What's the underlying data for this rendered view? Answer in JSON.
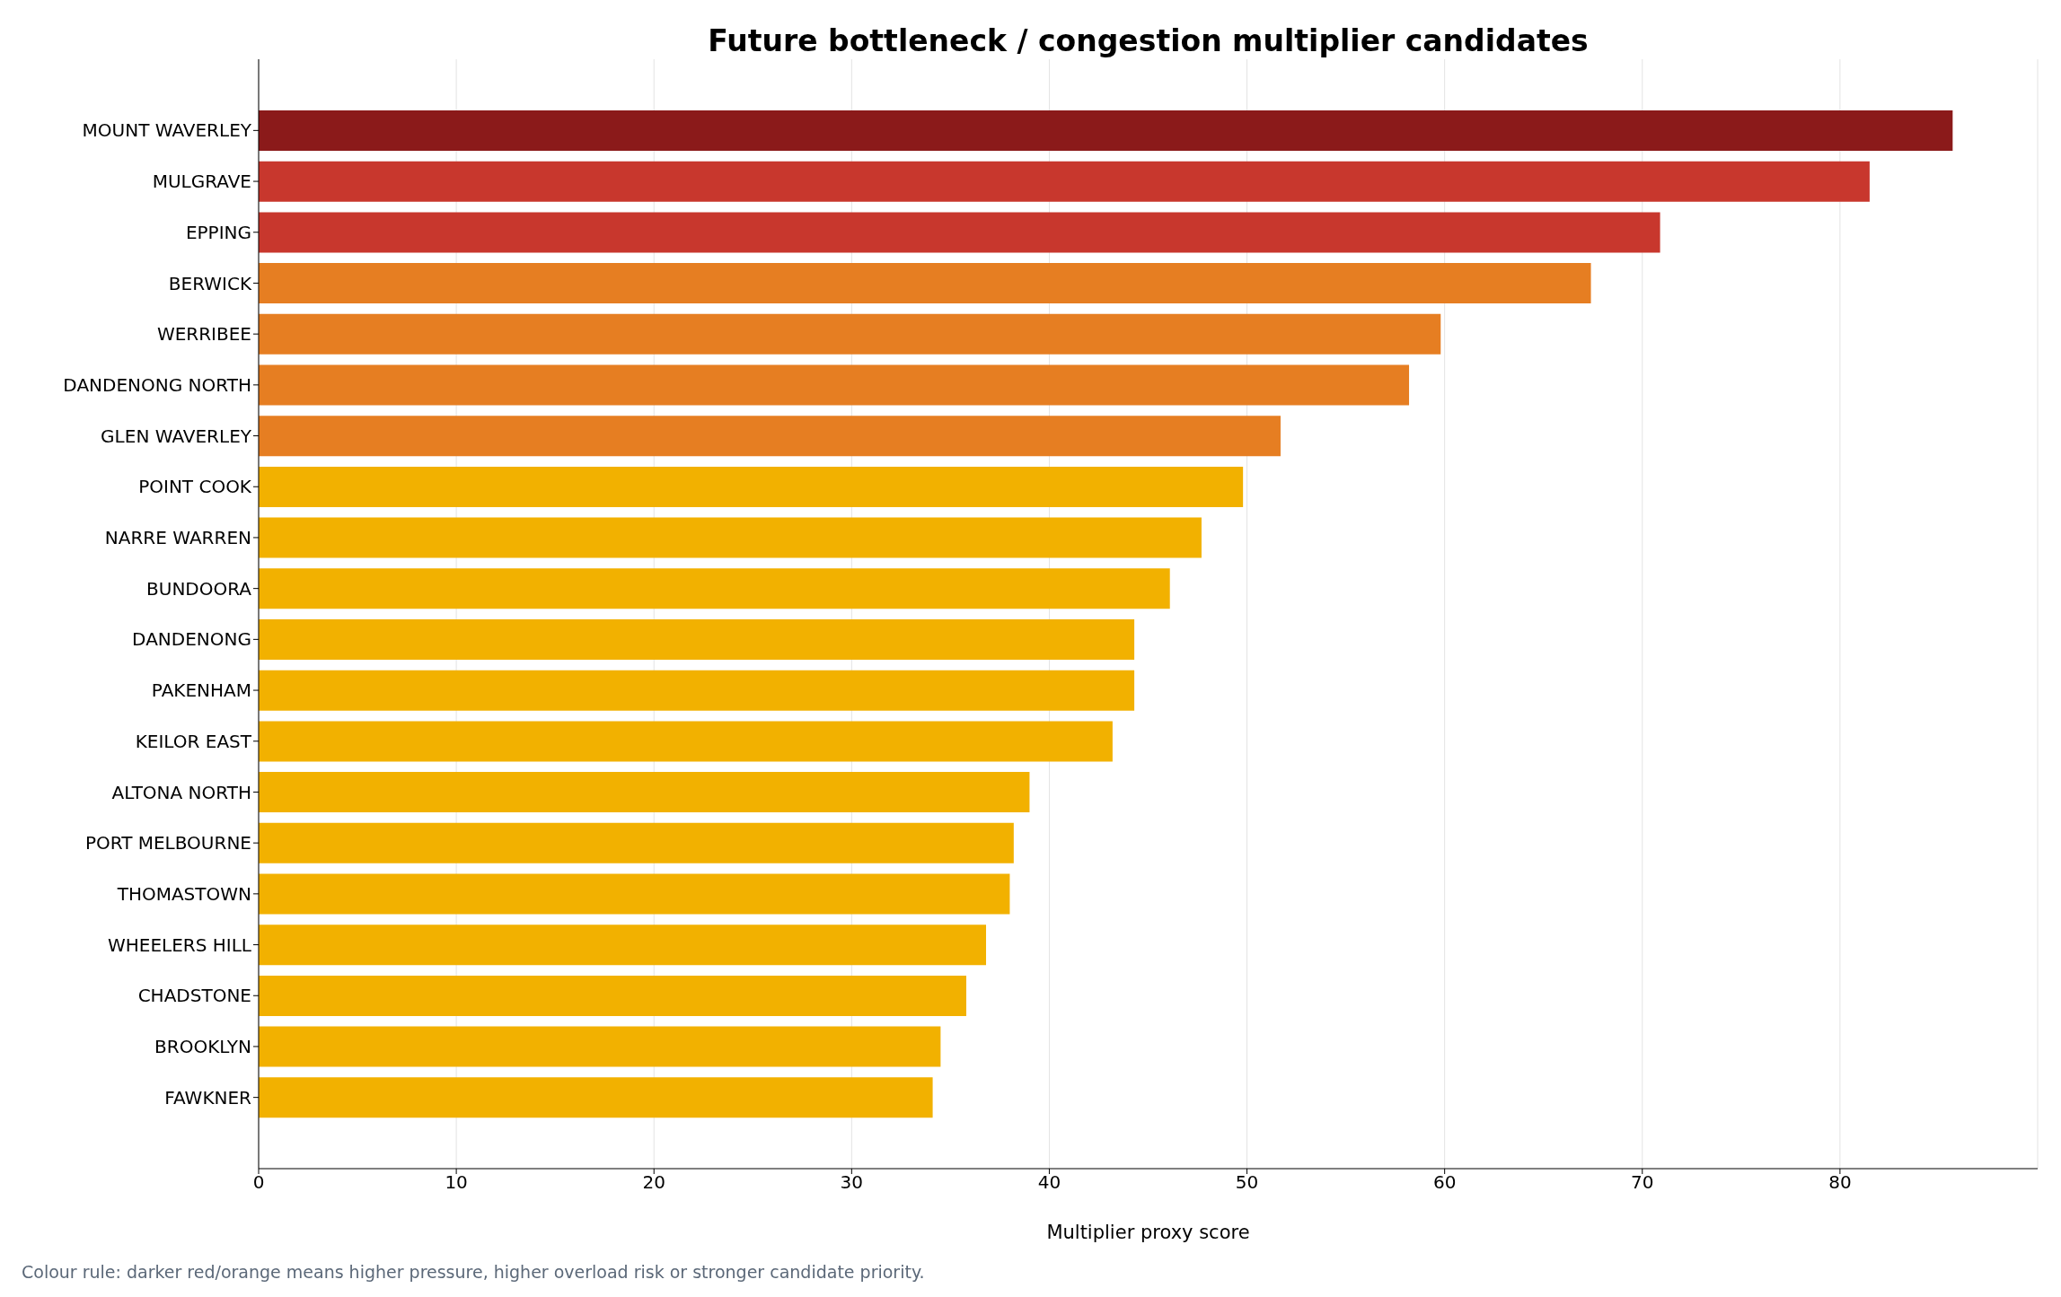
{
  "chart_data": {
    "type": "bar",
    "orientation": "horizontal",
    "title": "Future bottleneck / congestion multiplier candidates",
    "xlabel": "Multiplier proxy score",
    "categories": [
      "MOUNT WAVERLEY",
      "MULGRAVE",
      "EPPING",
      "BERWICK",
      "WERRIBEE",
      "DANDENONG NORTH",
      "GLEN WAVERLEY",
      "POINT COOK",
      "NARRE WARREN",
      "BUNDOORA",
      "DANDENONG",
      "PAKENHAM",
      "KEILOR EAST",
      "ALTONA NORTH",
      "PORT MELBOURNE",
      "THOMASTOWN",
      "WHEELERS HILL",
      "CHADSTONE",
      "BROOKLYN",
      "FAWKNER"
    ],
    "values": [
      85.7,
      81.5,
      70.9,
      67.4,
      59.8,
      58.2,
      51.7,
      49.8,
      47.7,
      46.1,
      44.3,
      44.3,
      43.2,
      39.0,
      38.2,
      38.0,
      36.8,
      35.8,
      34.5,
      34.1
    ],
    "colors": [
      "#8b1a1a",
      "#c8372d",
      "#c8372d",
      "#e67e22",
      "#e67e22",
      "#e67e22",
      "#e67e22",
      "#f2b100",
      "#f2b100",
      "#f2b100",
      "#f2b100",
      "#f2b100",
      "#f2b100",
      "#f2b100",
      "#f2b100",
      "#f2b100",
      "#f2b100",
      "#f2b100",
      "#f2b100",
      "#f2b100"
    ],
    "xlim": [
      0,
      90
    ],
    "xticks": [
      0,
      10,
      20,
      30,
      40,
      50,
      60,
      70,
      80
    ],
    "grid": "x",
    "annotations": [
      "Colour rule: darker red/orange means higher pressure, higher overload risk or stronger candidate priority."
    ]
  }
}
